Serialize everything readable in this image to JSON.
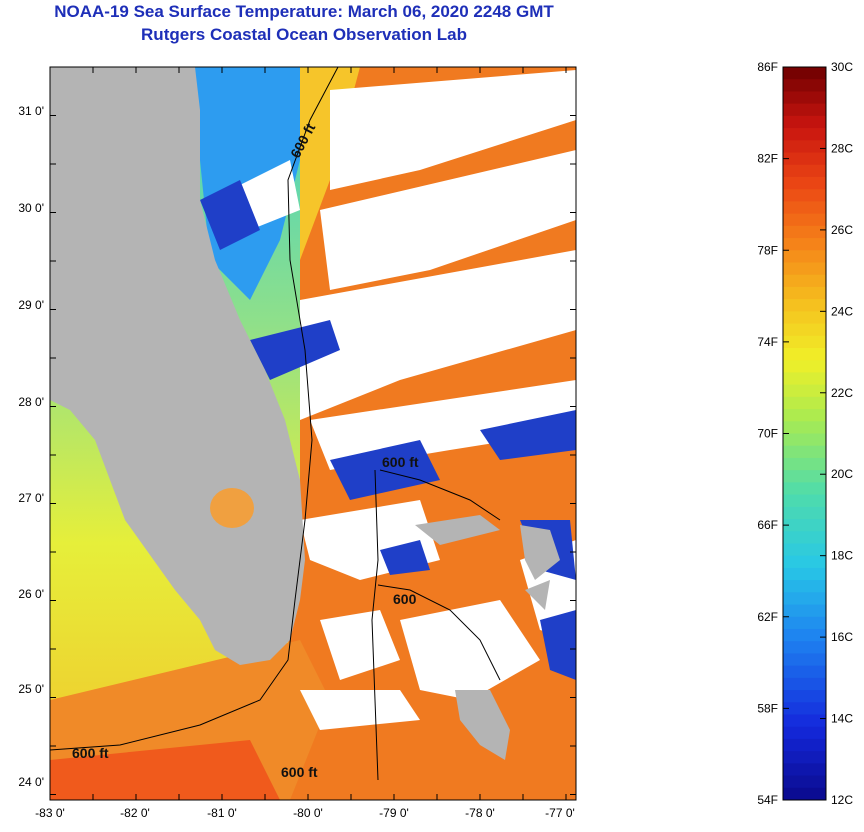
{
  "title_line1": "NOAA-19 Sea Surface Temperature:  March 06, 2020 2248 GMT",
  "title_line2": "Rutgers Coastal Ocean Observation Lab",
  "map": {
    "lon_ticks": [
      "-83 0'",
      "-82 0'",
      "-81 0'",
      "-80 0'",
      "-79 0'",
      "-78 0'",
      "-77 0'"
    ],
    "lat_ticks": [
      "31 0'",
      "30 0'",
      "29 0'",
      "28 0'",
      "27 0'",
      "26 0'",
      "25 0'",
      "24 0'"
    ],
    "contour_labels": [
      "600 ft",
      "600 ft",
      "600",
      "600 ft",
      "600 ft"
    ],
    "colors": {
      "land": "#b4b4b4",
      "cloud": "#ffffff",
      "contour": "#000000"
    }
  },
  "colorbar": {
    "fahrenheit_ticks": [
      "86F",
      "82F",
      "78F",
      "74F",
      "70F",
      "66F",
      "62F",
      "58F",
      "54F"
    ],
    "celsius_ticks": [
      "30C",
      "28C",
      "26C",
      "24C",
      "22C",
      "20C",
      "18C",
      "16C",
      "14C",
      "12C"
    ],
    "range_c": [
      12,
      30
    ]
  }
}
